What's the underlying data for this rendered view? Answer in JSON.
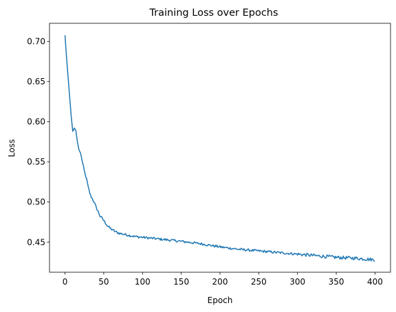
{
  "chart_data": {
    "type": "line",
    "title": "Training Loss over Epochs",
    "xlabel": "Epoch",
    "ylabel": "Loss",
    "xlim": [
      -20,
      420
    ],
    "ylim": [
      0.4125,
      0.7225
    ],
    "xticks": [
      0,
      50,
      100,
      150,
      200,
      250,
      300,
      350,
      400
    ],
    "yticks": [
      0.45,
      0.5,
      0.55,
      0.6,
      0.65,
      0.7
    ],
    "ytick_labels": [
      "0.45",
      "0.50",
      "0.55",
      "0.60",
      "0.65",
      "0.70"
    ],
    "grid": false,
    "series_color": "#1f77b4",
    "series": [
      {
        "name": "",
        "keypoints_x": [
          0,
          2,
          5,
          8,
          10,
          12,
          14,
          16,
          18,
          20,
          22,
          25,
          28,
          30,
          33,
          36,
          40,
          45,
          50,
          55,
          60,
          65,
          70,
          80,
          90,
          100,
          120,
          150,
          175,
          200,
          225,
          250,
          275,
          300,
          325,
          350,
          375,
          399
        ],
        "keypoints_y": [
          0.707,
          0.68,
          0.643,
          0.607,
          0.588,
          0.592,
          0.589,
          0.575,
          0.565,
          0.561,
          0.552,
          0.538,
          0.528,
          0.518,
          0.508,
          0.503,
          0.494,
          0.483,
          0.477,
          0.47,
          0.466,
          0.463,
          0.461,
          0.459,
          0.457,
          0.456,
          0.454,
          0.451,
          0.448,
          0.444,
          0.441,
          0.439,
          0.437,
          0.435,
          0.433,
          0.431,
          0.43,
          0.428
        ],
        "noise_amplitude": 0.0015
      }
    ]
  }
}
